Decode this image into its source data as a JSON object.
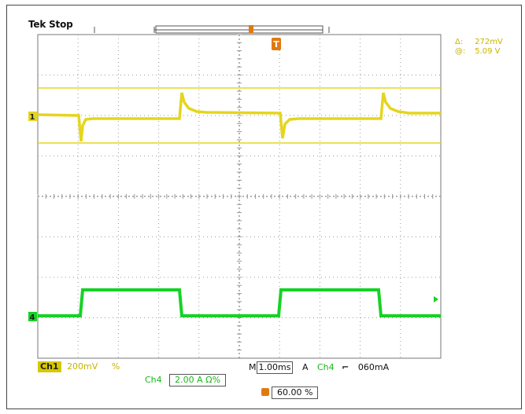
{
  "status": {
    "brand": "Tek",
    "state": "Stop"
  },
  "cursor_readout": {
    "delta_label": "Δ:",
    "delta_value": "272mV",
    "at_label": "@:",
    "at_value": "5.09 V"
  },
  "markers": {
    "ch1": "1",
    "ch4": "4",
    "trigger": "T"
  },
  "bottom": {
    "ch1_tag": "Ch1",
    "ch1_scale": "200mV",
    "ch1_coupling": "%",
    "timebase_prefix": "M",
    "timebase_value": "1.00ms",
    "trigger_mode": "A",
    "trigger_source": "Ch4",
    "trigger_slope": "⌐",
    "trigger_level": "060mA",
    "ch4_label": "Ch4",
    "ch4_scale": "2.00 A Ω%",
    "position_value": "60.00 %"
  },
  "colors": {
    "ch1": "#e5d51e",
    "ch4": "#16d225",
    "trigger": "#e07a10",
    "grid": "#9a9a9a"
  }
}
